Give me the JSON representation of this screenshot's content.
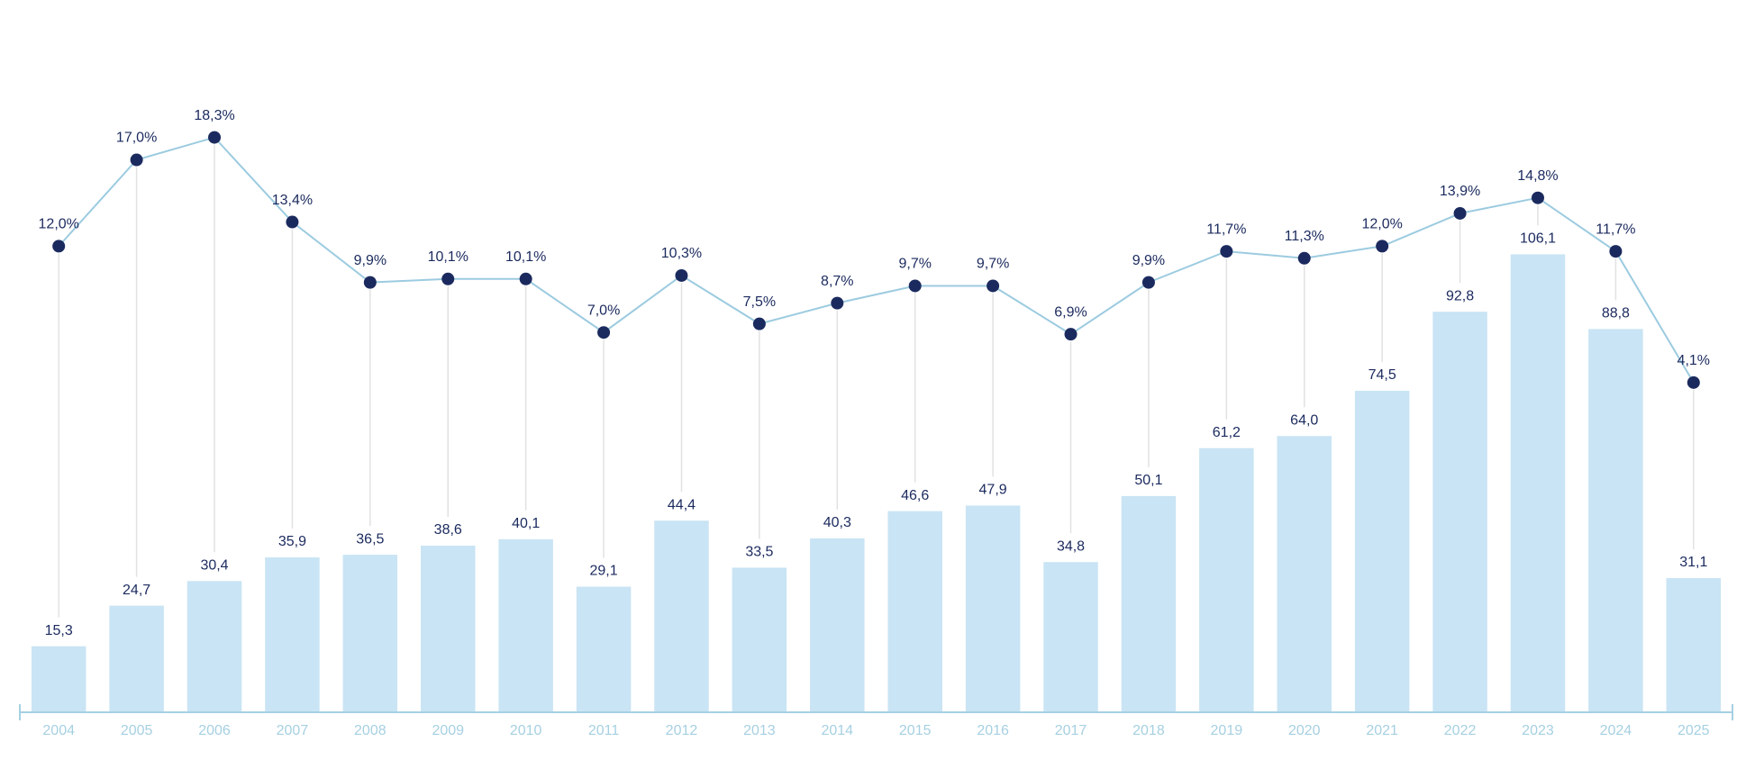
{
  "chart_data": {
    "type": "combo",
    "categories": [
      "2004",
      "2005",
      "2006",
      "2007",
      "2008",
      "2009",
      "2010",
      "2011",
      "2012",
      "2013",
      "2014",
      "2015",
      "2016",
      "2017",
      "2018",
      "2019",
      "2020",
      "2021",
      "2022",
      "2023",
      "2024",
      "2025"
    ],
    "ylim": [
      0,
      140
    ],
    "y2lim": [
      -15,
      20
    ],
    "axis_color": "#a6d0e2",
    "label_color": "#1b2a5e",
    "series": [
      {
        "type": "bar",
        "color": "#c9e4f4",
        "values": [
          15.3,
          24.7,
          30.4,
          35.9,
          36.5,
          38.6,
          40.1,
          29.1,
          44.4,
          33.5,
          40.3,
          46.6,
          47.9,
          34.8,
          50.1,
          61.2,
          64.0,
          74.5,
          92.8,
          106.1,
          88.8,
          31.1
        ],
        "value_labels": [
          "15,3",
          "24,7",
          "30,4",
          "35,9",
          "36,5",
          "38,6",
          "40,1",
          "29,1",
          "44,4",
          "33,5",
          "40,3",
          "46,6",
          "47,9",
          "34,8",
          "50,1",
          "61,2",
          "64,0",
          "74,5",
          "92,8",
          "106,1",
          "88,8",
          "31,1"
        ]
      },
      {
        "type": "line",
        "axis": "y2",
        "color": "#9ccbe0",
        "marker_color": "#1b2a5e",
        "values": [
          12.0,
          17.0,
          18.3,
          13.4,
          9.9,
          10.1,
          10.1,
          7.0,
          10.3,
          7.5,
          8.7,
          9.7,
          9.7,
          6.9,
          9.9,
          11.7,
          11.3,
          12.0,
          13.9,
          14.8,
          11.7,
          4.1
        ],
        "value_labels": [
          "12,0%",
          "17,0%",
          "18,3%",
          "13,4%",
          "9,9%",
          "10,1%",
          "10,1%",
          "7,0%",
          "10,3%",
          "7,5%",
          "8,7%",
          "9,7%",
          "9,7%",
          "6,9%",
          "9,9%",
          "11,7%",
          "11,3%",
          "12,0%",
          "13,9%",
          "14,8%",
          "11,7%",
          "4,1%"
        ]
      }
    ]
  }
}
